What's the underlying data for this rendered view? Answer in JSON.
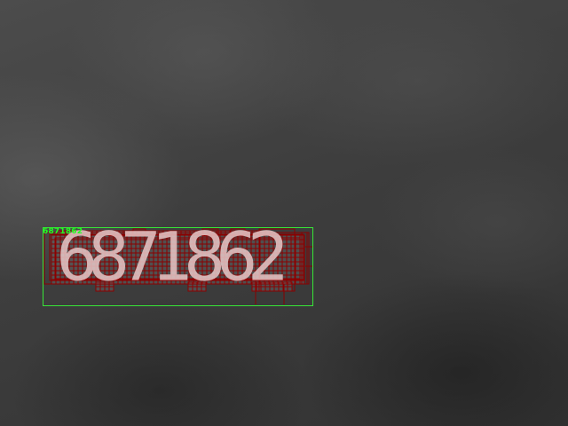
{
  "detection": {
    "label": "6871862",
    "box_color": "#37e637",
    "grid_color": "#8b0000",
    "digits": [
      "6",
      "8",
      "7",
      "1",
      "8",
      "6",
      "2"
    ]
  }
}
